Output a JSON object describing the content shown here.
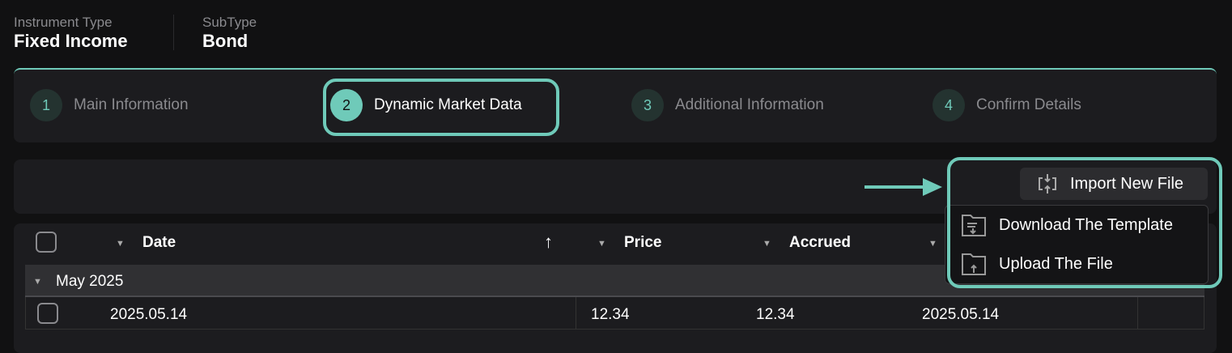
{
  "header": {
    "instrument_type_label": "Instrument Type",
    "instrument_type_value": "Fixed Income",
    "subtype_label": "SubType",
    "subtype_value": "Bond"
  },
  "steps": [
    {
      "num": "1",
      "label": "Main Information"
    },
    {
      "num": "2",
      "label": "Dynamic Market Data",
      "active": true
    },
    {
      "num": "3",
      "label": "Additional Information"
    },
    {
      "num": "4",
      "label": "Confirm Details"
    }
  ],
  "toolbar": {
    "import_label": "Import New File"
  },
  "dropdown": {
    "items": [
      {
        "label": "Download The Template",
        "icon": "folder-download-icon"
      },
      {
        "label": "Upload The File",
        "icon": "folder-upload-icon"
      }
    ]
  },
  "table": {
    "columns": [
      "Date",
      "Price",
      "Accrued",
      ""
    ],
    "sort": "ascending",
    "group": "May 2025",
    "rows": [
      {
        "date": "2025.05.14",
        "price": "12.34",
        "accrued": "12.34",
        "col4": "2025.05.14"
      }
    ]
  },
  "colors": {
    "accent": "#6fcab9",
    "background": "#111112",
    "panel": "#1c1c1f"
  }
}
